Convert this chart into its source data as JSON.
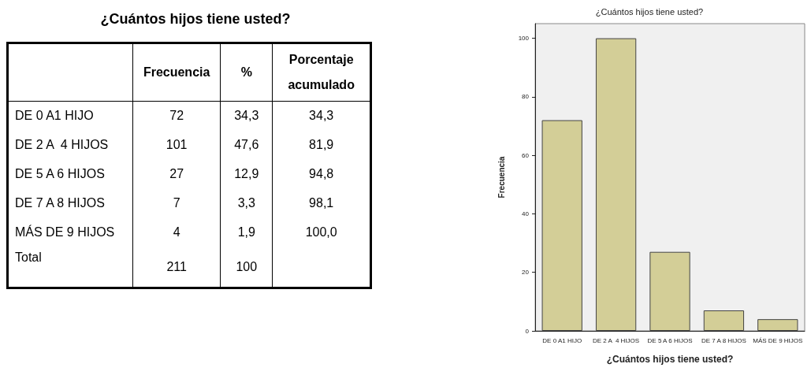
{
  "chart_data": [
    {
      "type": "other",
      "title": "¿Cuántos hijos tiene usted?",
      "categories": [
        "DE 0 A1 HIJO",
        "DE 2 A  4 HIJOS",
        "DE 5 A 6 HIJOS",
        "DE 7 A 8 HIJOS",
        "MÁS DE 9 HIJOS",
        "Total"
      ],
      "series": [
        {
          "name": "Frecuencia",
          "values": [
            72,
            101,
            27,
            7,
            4,
            211
          ],
          "value_labels": [
            "72",
            "101",
            "27",
            "7",
            "4",
            "211"
          ]
        },
        {
          "name": "%",
          "values": [
            34.3,
            47.6,
            12.9,
            3.3,
            1.9,
            100
          ],
          "value_labels": [
            "34,3",
            "47,6",
            "12,9",
            "3,3",
            "1,9",
            "100"
          ]
        },
        {
          "name": "Porcentaje acumulado",
          "values": [
            34.3,
            81.9,
            94.8,
            98.1,
            100.0,
            null
          ],
          "value_labels": [
            "34,3",
            "81,9",
            "94,8",
            "98,1",
            "100,0",
            null
          ]
        }
      ]
    },
    {
      "type": "bar",
      "title": "¿Cuántos hijos tiene usted?",
      "xlabel": "¿Cuántos hijos tiene usted?",
      "ylabel": "Frecuencia",
      "categories": [
        "DE 0 A1 HIJO",
        "DE 2 A  4 HIJOS",
        "DE 5 A 6 HIJOS",
        "DE 7 A 8 HIJOS",
        "MÁS DE 9 HIJOS"
      ],
      "values": [
        72,
        100,
        27,
        7,
        4
      ],
      "color": "#d3ce97",
      "ylim": [
        0,
        105
      ],
      "yticks": [
        0,
        20,
        40,
        60,
        80,
        100
      ]
    }
  ]
}
